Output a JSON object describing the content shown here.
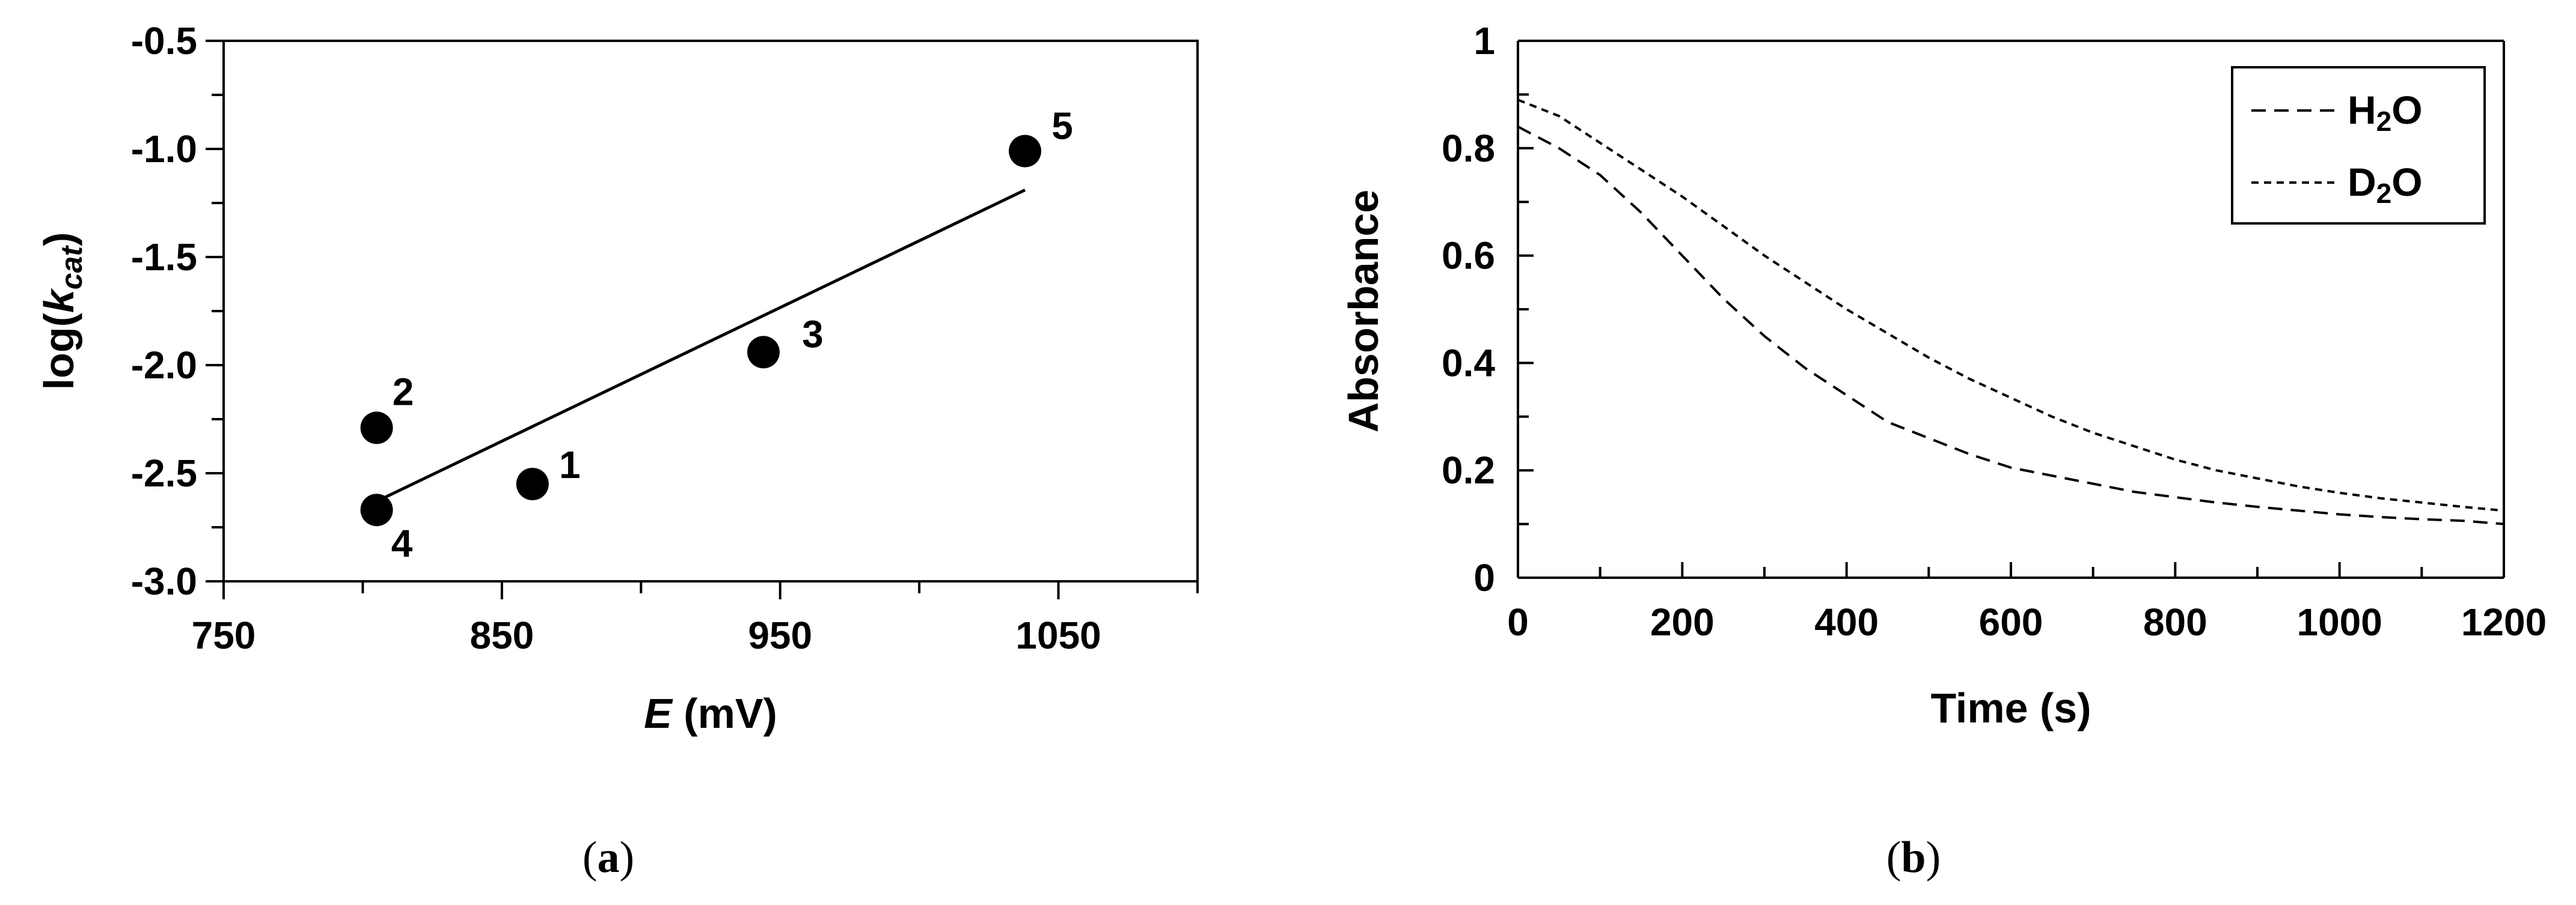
{
  "chart_data": [
    {
      "type": "scatter",
      "panel_caption": "(a)",
      "xlabel": {
        "italic": "E",
        "rest": " (mV)"
      },
      "ylabel": {
        "pre": "log(",
        "k": "k",
        "sub": "cat",
        "post": ")"
      },
      "xlim": [
        750,
        1100
      ],
      "ylim": [
        -3.0,
        -0.5
      ],
      "x_ticks": [
        750,
        850,
        950,
        1050
      ],
      "y_ticks": [
        "-0.5",
        "-1.0",
        "-1.5",
        "-2.0",
        "-2.5",
        "-3.0"
      ],
      "y_tick_values": [
        -0.5,
        -1.0,
        -1.5,
        -2.0,
        -2.5,
        -3.0
      ],
      "points": [
        {
          "label": "1",
          "x": 861,
          "y": -2.55
        },
        {
          "label": "2",
          "x": 805,
          "y": -2.29
        },
        {
          "label": "3",
          "x": 944,
          "y": -1.94
        },
        {
          "label": "4",
          "x": 805,
          "y": -2.67
        },
        {
          "label": "5",
          "x": 1038,
          "y": -1.01
        }
      ],
      "fit_line": {
        "x": [
          805,
          1038
        ],
        "y": [
          -2.63,
          -1.19
        ]
      }
    },
    {
      "type": "line",
      "panel_caption": "(b)",
      "xlabel": "Time (s)",
      "ylabel": "Absorbance",
      "xlim": [
        0,
        1200
      ],
      "ylim": [
        0,
        1
      ],
      "x_ticks": [
        "0",
        "200",
        "400",
        "600",
        "800",
        "1000",
        "1200"
      ],
      "x_tick_values": [
        0,
        200,
        400,
        600,
        800,
        1000,
        1200
      ],
      "y_ticks": [
        "1",
        "0.8",
        "0.6",
        "0.4",
        "0.2",
        "0"
      ],
      "y_tick_values": [
        1,
        0.8,
        0.6,
        0.4,
        0.2,
        0
      ],
      "legend_position": "top-right",
      "series": [
        {
          "name": "H2O",
          "legend_main": "H",
          "legend_sub": "2",
          "legend_tail": "O",
          "dash": "long",
          "x": [
            0,
            50,
            100,
            150,
            200,
            250,
            300,
            350,
            400,
            450,
            500,
            550,
            600,
            650,
            700,
            750,
            800,
            850,
            900,
            950,
            1000,
            1050,
            1100,
            1150,
            1200
          ],
          "y": [
            0.84,
            0.8,
            0.75,
            0.68,
            0.6,
            0.52,
            0.45,
            0.39,
            0.34,
            0.29,
            0.26,
            0.23,
            0.205,
            0.19,
            0.175,
            0.16,
            0.15,
            0.14,
            0.132,
            0.125,
            0.118,
            0.113,
            0.109,
            0.106,
            0.1
          ]
        },
        {
          "name": "D2O",
          "legend_main": "D",
          "legend_sub": "2",
          "legend_tail": "O",
          "dash": "short",
          "x": [
            0,
            50,
            100,
            150,
            200,
            250,
            300,
            350,
            400,
            450,
            500,
            550,
            600,
            650,
            700,
            750,
            800,
            850,
            900,
            950,
            1000,
            1050,
            1100,
            1150,
            1200
          ],
          "y": [
            0.89,
            0.86,
            0.81,
            0.76,
            0.71,
            0.655,
            0.6,
            0.55,
            0.5,
            0.455,
            0.41,
            0.37,
            0.335,
            0.3,
            0.27,
            0.245,
            0.22,
            0.2,
            0.185,
            0.17,
            0.158,
            0.148,
            0.14,
            0.132,
            0.125
          ]
        }
      ]
    }
  ]
}
